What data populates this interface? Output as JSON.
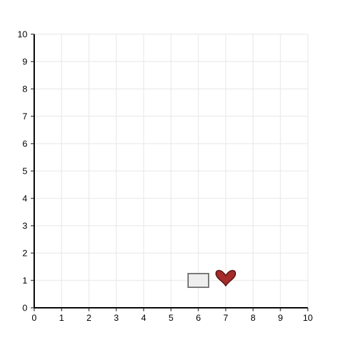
{
  "chart_data": {
    "type": "scatter",
    "title": "",
    "xlabel": "",
    "ylabel": "",
    "xlim": [
      0,
      10
    ],
    "ylim": [
      0,
      10
    ],
    "grid": true,
    "x_ticks": [
      "0",
      "1",
      "2",
      "3",
      "4",
      "5",
      "6",
      "7",
      "8",
      "9",
      "10"
    ],
    "y_ticks": [
      "0",
      "1",
      "2",
      "3",
      "4",
      "5",
      "6",
      "7",
      "8",
      "9",
      "10"
    ],
    "objects": [
      {
        "shape": "rectangle",
        "x": 6,
        "y": 1,
        "fill": "#eeeeee",
        "stroke": "#777777"
      },
      {
        "shape": "heart",
        "x": 7,
        "y": 1.1,
        "fill": "#a52a2a",
        "stroke": "#5a1414"
      }
    ]
  },
  "colors": {
    "grid": "#e6e6e6",
    "axis": "#000000"
  }
}
